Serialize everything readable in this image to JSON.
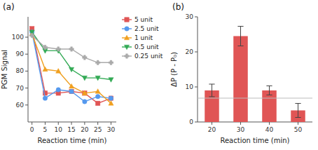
{
  "chart_data": [
    {
      "type": "line",
      "title": "(a)",
      "x_label": "Reaction time (min)",
      "y_label": "PGM Signal",
      "x": [
        0,
        5,
        10,
        15,
        20,
        25,
        30
      ],
      "xlim": [
        -1.5,
        32
      ],
      "ylim": [
        50,
        112
      ],
      "xticks": [
        0,
        5,
        10,
        15,
        20,
        25,
        30
      ],
      "yticks": [
        60,
        70,
        80,
        90,
        100
      ],
      "grid": false,
      "legend": "upper right",
      "series": [
        {
          "name": "5 unit",
          "color": "#e05555",
          "marker": "square",
          "values": [
            105,
            67,
            67,
            68,
            67,
            61,
            64
          ]
        },
        {
          "name": "2.5 unit",
          "color": "#5599ee",
          "marker": "circle",
          "values": [
            103,
            64,
            69,
            68,
            62,
            65,
            64
          ]
        },
        {
          "name": "1 unit",
          "color": "#f0a020",
          "marker": "triangle-up",
          "values": [
            102,
            81,
            80,
            71,
            67,
            68,
            61
          ]
        },
        {
          "name": "0.5 unit",
          "color": "#33aa55",
          "marker": "triangle-down",
          "values": [
            103,
            92,
            92,
            81,
            76,
            76,
            75
          ]
        },
        {
          "name": "0.25 unit",
          "color": "#aaaaaa",
          "marker": "plus",
          "values": [
            101,
            94,
            93,
            93,
            88,
            85,
            85
          ]
        }
      ]
    },
    {
      "type": "bar",
      "title": "(b)",
      "x_label": "Reaction time (min)",
      "y_label": "ΔP (P - P₀)",
      "categories": [
        20,
        30,
        40,
        50
      ],
      "values": [
        9.0,
        24.5,
        9.0,
        3.3
      ],
      "errors": [
        1.8,
        2.8,
        1.3,
        2.0
      ],
      "color": "#e05555",
      "reference_line": {
        "value": 6.8,
        "color": "#bbbbbb"
      },
      "xlim": [
        15,
        55
      ],
      "ylim": [
        0,
        30
      ],
      "xticks": [
        20,
        30,
        40,
        50
      ],
      "yticks": [
        0,
        10,
        20,
        30
      ],
      "grid": false
    }
  ]
}
